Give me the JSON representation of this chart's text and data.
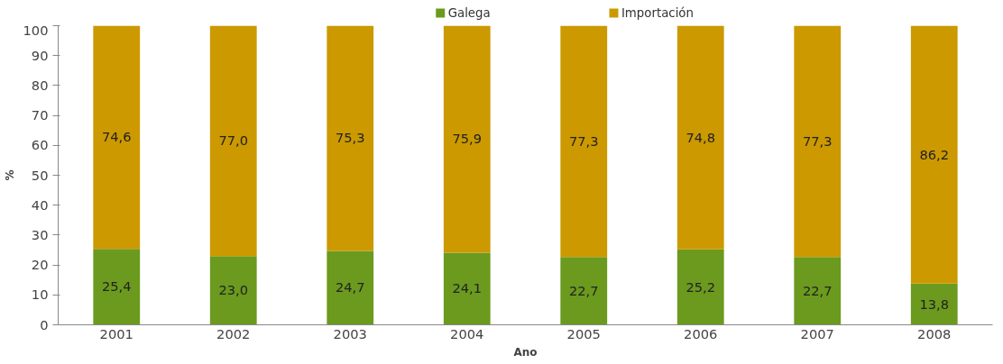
{
  "chart_data": {
    "type": "bar",
    "stacked": true,
    "xlabel": "Ano",
    "ylabel": "%",
    "categories": [
      "2001",
      "2002",
      "2003",
      "2004",
      "2005",
      "2006",
      "2007",
      "2008"
    ],
    "series": [
      {
        "name": "Galega",
        "color": "#6b9a1e",
        "values": [
          25.4,
          23.0,
          24.7,
          24.1,
          22.7,
          25.2,
          22.7,
          13.8
        ],
        "value_labels": [
          "25,4",
          "23,0",
          "24,7",
          "24,1",
          "22,7",
          "25,2",
          "22,7",
          "13,8"
        ]
      },
      {
        "name": "Importación",
        "color": "#cc9900",
        "values": [
          74.6,
          77.0,
          75.3,
          75.9,
          77.3,
          74.8,
          77.3,
          86.2
        ],
        "value_labels": [
          "74,6",
          "77,0",
          "75,3",
          "75,9",
          "77,3",
          "74,8",
          "77,3",
          "86,2"
        ]
      }
    ],
    "ylim": [
      0,
      100
    ],
    "yticks": [
      0,
      10,
      20,
      30,
      40,
      50,
      60,
      70,
      80,
      90,
      100
    ],
    "grid": false,
    "legend": "top"
  }
}
